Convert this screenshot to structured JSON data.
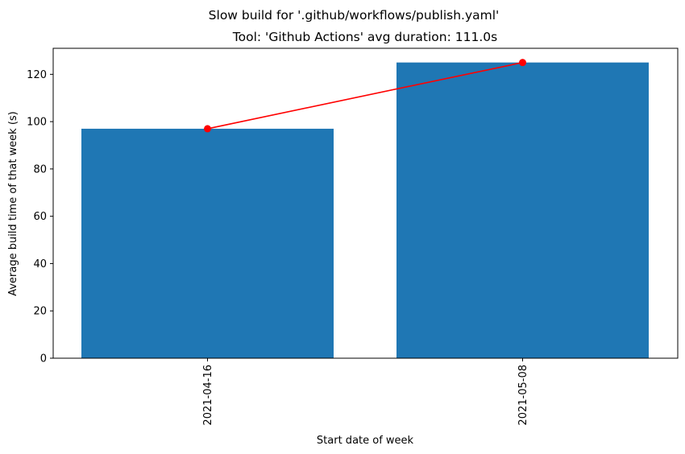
{
  "chart_data": {
    "type": "bar",
    "suptitle": "Slow build for '.github/workflows/publish.yaml'",
    "title": "Tool: 'Github Actions' avg duration: 111.0s",
    "xlabel": "Start date of week",
    "ylabel": "Average build time of that week (s)",
    "categories": [
      "2021-04-16",
      "2021-05-08"
    ],
    "values": [
      97,
      125
    ],
    "line_values": [
      97,
      125
    ],
    "ylim": [
      0,
      131
    ],
    "yticks": [
      0,
      20,
      40,
      60,
      80,
      100,
      120
    ],
    "grid": false,
    "bar_color": "#1f77b4",
    "line_color": "#ff0000"
  }
}
